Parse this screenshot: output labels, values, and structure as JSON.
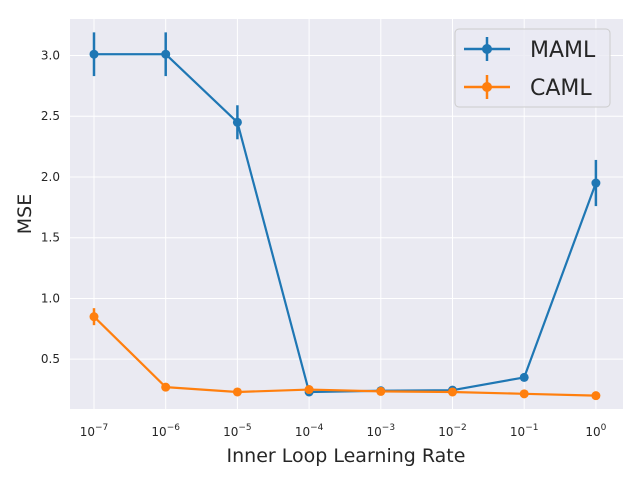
{
  "chart_data": {
    "type": "line",
    "xlabel": "Inner Loop Learning Rate",
    "ylabel": "MSE",
    "x_scale": "log",
    "x": [
      1e-07,
      1e-06,
      1e-05,
      0.0001,
      0.001,
      0.01,
      0.1,
      1
    ],
    "x_tick_labels": [
      {
        "base": "10",
        "exp": "−7"
      },
      {
        "base": "10",
        "exp": "−6"
      },
      {
        "base": "10",
        "exp": "−5"
      },
      {
        "base": "10",
        "exp": "−4"
      },
      {
        "base": "10",
        "exp": "−3"
      },
      {
        "base": "10",
        "exp": "−2"
      },
      {
        "base": "10",
        "exp": "−1"
      },
      {
        "base": "10",
        "exp": "0"
      }
    ],
    "y_ticks": [
      0.5,
      1.0,
      1.5,
      2.0,
      2.5,
      3.0
    ],
    "y_tick_labels": [
      "0.5",
      "1.0",
      "1.5",
      "2.0",
      "2.5",
      "3.0"
    ],
    "ylim": [
      0.09,
      3.3
    ],
    "grid": true,
    "legend_position": "top-right",
    "series": [
      {
        "name": "MAML",
        "color": "#1f77b4",
        "values": [
          3.01,
          3.01,
          2.45,
          0.23,
          0.24,
          0.245,
          0.35,
          1.95
        ],
        "errors": [
          0.18,
          0.18,
          0.14,
          0.01,
          0.01,
          0.01,
          0.02,
          0.19
        ]
      },
      {
        "name": "CAML",
        "color": "#ff7f0e",
        "values": [
          0.85,
          0.27,
          0.23,
          0.25,
          0.235,
          0.23,
          0.215,
          0.2
        ],
        "errors": [
          0.07,
          0.01,
          0.01,
          0.01,
          0.01,
          0.01,
          0.01,
          0.01
        ]
      }
    ]
  },
  "colors": {
    "plot_background": "#eaeaf2",
    "grid": "#ffffff",
    "text": "#262626"
  }
}
